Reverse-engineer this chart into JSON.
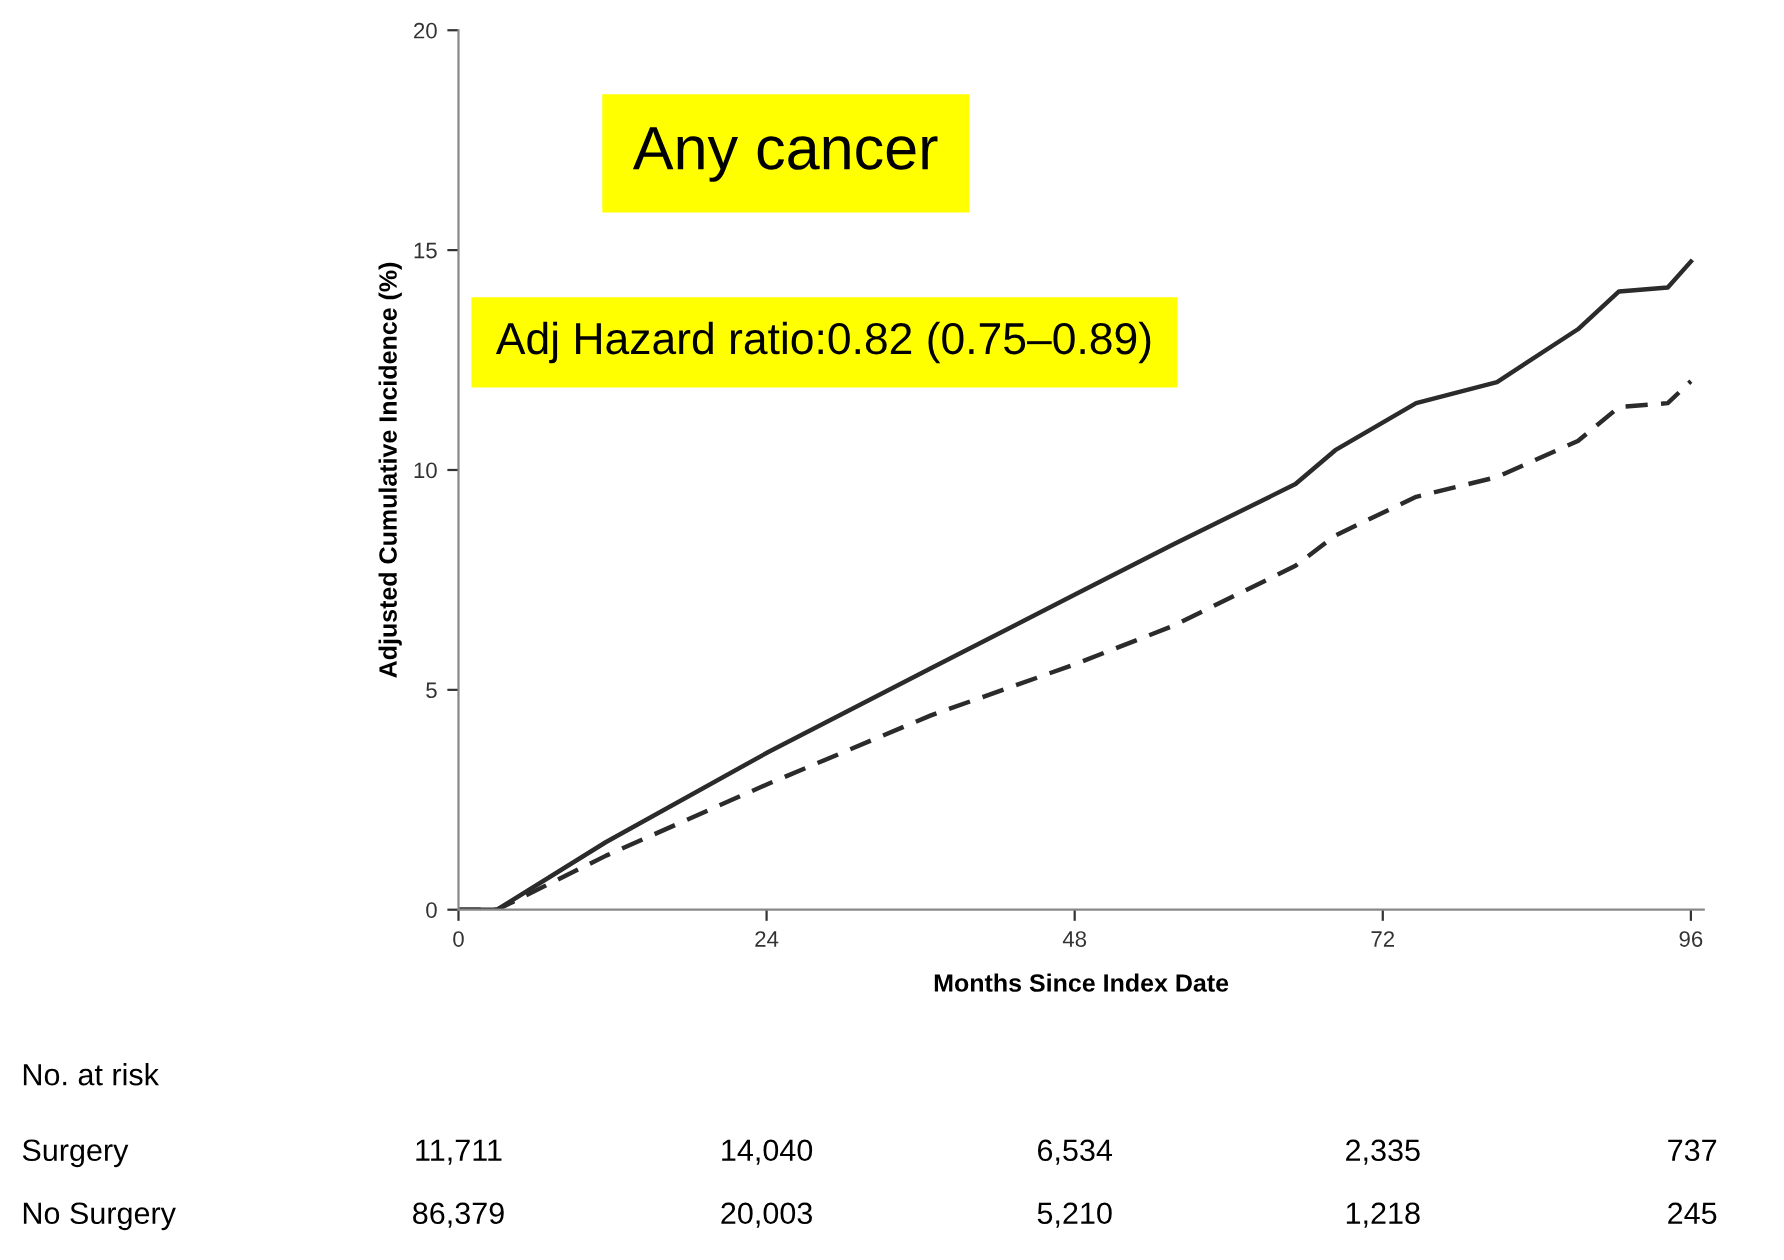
{
  "chart_data": {
    "type": "line",
    "title": "Any cancer",
    "subtitle": "Adj Hazard ratio:0.82 (0.75–0.89)",
    "xlabel": "Months Since Index Date",
    "ylabel": "Adjusted Cumulative Incidence (%)",
    "series": [
      {
        "color": "#2b2b2b",
        "line_style": "solid",
        "x": [
          0,
          3,
          11.5,
          24.1,
          36.8,
          48.1,
          55.7,
          65.2,
          68.3,
          74.6,
          80.9,
          87.2,
          90.4,
          94.2,
          96
        ],
        "values": [
          0,
          0,
          1.54,
          3.58,
          5.49,
          7.18,
          8.31,
          9.68,
          10.45,
          11.52,
          12.0,
          13.2,
          14.06,
          14.15,
          14.74
        ]
      },
      {
        "color": "#2b2b2b",
        "line_style": "dashed",
        "x": [
          0,
          3,
          11.5,
          24.1,
          36.8,
          48.1,
          55.7,
          65.2,
          68.3,
          74.6,
          80.9,
          87.2,
          90.4,
          94.2,
          96
        ],
        "values": [
          0,
          0,
          1.23,
          2.86,
          4.42,
          5.59,
          6.46,
          7.82,
          8.51,
          9.39,
          9.84,
          10.66,
          11.43,
          11.52,
          12.02
        ]
      }
    ],
    "xlim": [
      0,
      97
    ],
    "xticks": [
      0,
      24,
      48,
      72,
      96
    ],
    "ylim": [
      0,
      20
    ],
    "yticks": [
      0,
      5,
      10,
      15,
      20
    ],
    "grid": false,
    "legend": false,
    "marker": "none",
    "annotations": [
      "No. at risk",
      "Surgery",
      "11,711",
      "14,040",
      "6,534",
      "2,335",
      "737",
      "No Surgery",
      "86,379",
      "20,003",
      "5,210",
      "1,218",
      "245"
    ]
  }
}
